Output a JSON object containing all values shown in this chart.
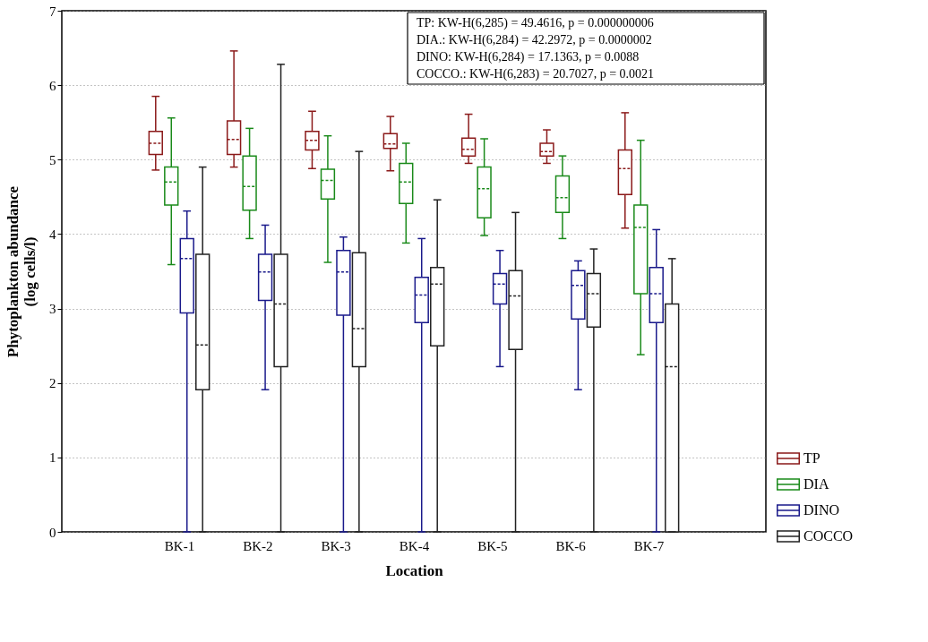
{
  "chart_data": {
    "type": "box",
    "xlabel": "Location",
    "ylabel": "Phytoplankton abundance\n(log cells/l)",
    "categories": [
      "BK-1",
      "BK-2",
      "BK-3",
      "BK-4",
      "BK-5",
      "BK-6",
      "BK-7"
    ],
    "ylim": [
      0,
      7
    ],
    "yticks": [
      {
        "value": 0,
        "label": "0"
      },
      {
        "value": 1,
        "label": "1"
      },
      {
        "value": 2,
        "label": "2"
      },
      {
        "value": 3,
        "label": "3"
      },
      {
        "value": 4,
        "label": "4"
      },
      {
        "value": 5,
        "label": "5"
      },
      {
        "value": 6,
        "label": "6"
      },
      {
        "value": 7,
        "label": "7"
      }
    ],
    "grid": "y",
    "legend": "bottom right",
    "annotations": [
      "TP:  KW-H(6,285) = 49.4616, p = 0.000000006",
      "DIA.:  KW-H(6,284) = 42.2972, p = 0.0000002",
      "DINO:  KW-H(6,284) = 17.1363, p = 0.0088",
      "COCCO.:  KW-H(6,283) = 20.7027, p = 0.0021"
    ],
    "series": [
      {
        "name": "TP",
        "color": "#8b1a1a",
        "boxes": [
          {
            "low": 4.86,
            "q1": 5.07,
            "median": 5.22,
            "q3": 5.38,
            "high": 5.85
          },
          {
            "low": 4.9,
            "q1": 5.07,
            "median": 5.27,
            "q3": 5.52,
            "high": 6.46
          },
          {
            "low": 4.88,
            "q1": 5.13,
            "median": 5.26,
            "q3": 5.38,
            "high": 5.65
          },
          {
            "low": 4.85,
            "q1": 5.15,
            "median": 5.21,
            "q3": 5.35,
            "high": 5.58
          },
          {
            "low": 4.95,
            "q1": 5.05,
            "median": 5.14,
            "q3": 5.29,
            "high": 5.61
          },
          {
            "low": 4.95,
            "q1": 5.05,
            "median": 5.11,
            "q3": 5.22,
            "high": 5.4
          },
          {
            "low": 4.08,
            "q1": 4.53,
            "median": 4.88,
            "q3": 5.13,
            "high": 5.63
          }
        ]
      },
      {
        "name": "DIA",
        "color": "#1a8a1a",
        "boxes": [
          {
            "low": 3.59,
            "q1": 4.39,
            "median": 4.7,
            "q3": 4.9,
            "high": 5.56
          },
          {
            "low": 3.94,
            "q1": 4.32,
            "median": 4.64,
            "q3": 5.05,
            "high": 5.42
          },
          {
            "low": 3.62,
            "q1": 4.47,
            "median": 4.72,
            "q3": 4.87,
            "high": 5.32
          },
          {
            "low": 3.88,
            "q1": 4.41,
            "median": 4.7,
            "q3": 4.95,
            "high": 5.22
          },
          {
            "low": 3.98,
            "q1": 4.22,
            "median": 4.61,
            "q3": 4.9,
            "high": 5.28
          },
          {
            "low": 3.94,
            "q1": 4.29,
            "median": 4.49,
            "q3": 4.78,
            "high": 5.05
          },
          {
            "low": 2.38,
            "q1": 3.2,
            "median": 4.09,
            "q3": 4.39,
            "high": 5.26
          }
        ]
      },
      {
        "name": "DINO",
        "color": "#1a1a8b",
        "boxes": [
          {
            "low": 0,
            "q1": 2.94,
            "median": 3.67,
            "q3": 3.94,
            "high": 4.31
          },
          {
            "low": 1.91,
            "q1": 3.11,
            "median": 3.49,
            "q3": 3.73,
            "high": 4.12
          },
          {
            "low": 0,
            "q1": 2.91,
            "median": 3.49,
            "q3": 3.78,
            "high": 3.96
          },
          {
            "low": 0,
            "q1": 2.81,
            "median": 3.18,
            "q3": 3.42,
            "high": 3.94
          },
          {
            "low": 2.22,
            "q1": 3.06,
            "median": 3.33,
            "q3": 3.47,
            "high": 3.78
          },
          {
            "low": 1.91,
            "q1": 2.86,
            "median": 3.31,
            "q3": 3.51,
            "high": 3.64
          },
          {
            "low": 0,
            "q1": 2.81,
            "median": 3.2,
            "q3": 3.55,
            "high": 4.06
          }
        ]
      },
      {
        "name": "COCCO",
        "color": "#222222",
        "boxes": [
          {
            "low": 0,
            "q1": 1.91,
            "median": 2.51,
            "q3": 3.73,
            "high": 4.9
          },
          {
            "low": 0,
            "q1": 2.22,
            "median": 3.06,
            "q3": 3.73,
            "high": 6.28
          },
          {
            "low": 0,
            "q1": 2.22,
            "median": 2.73,
            "q3": 3.75,
            "high": 5.11
          },
          {
            "low": 0,
            "q1": 2.5,
            "median": 3.33,
            "q3": 3.55,
            "high": 4.46
          },
          {
            "low": 0,
            "q1": 2.45,
            "median": 3.17,
            "q3": 3.51,
            "high": 4.29
          },
          {
            "low": 0,
            "q1": 2.75,
            "median": 3.2,
            "q3": 3.47,
            "high": 3.8
          },
          {
            "low": 0,
            "q1": 0,
            "median": 2.22,
            "q3": 3.06,
            "high": 3.67
          }
        ]
      }
    ]
  }
}
